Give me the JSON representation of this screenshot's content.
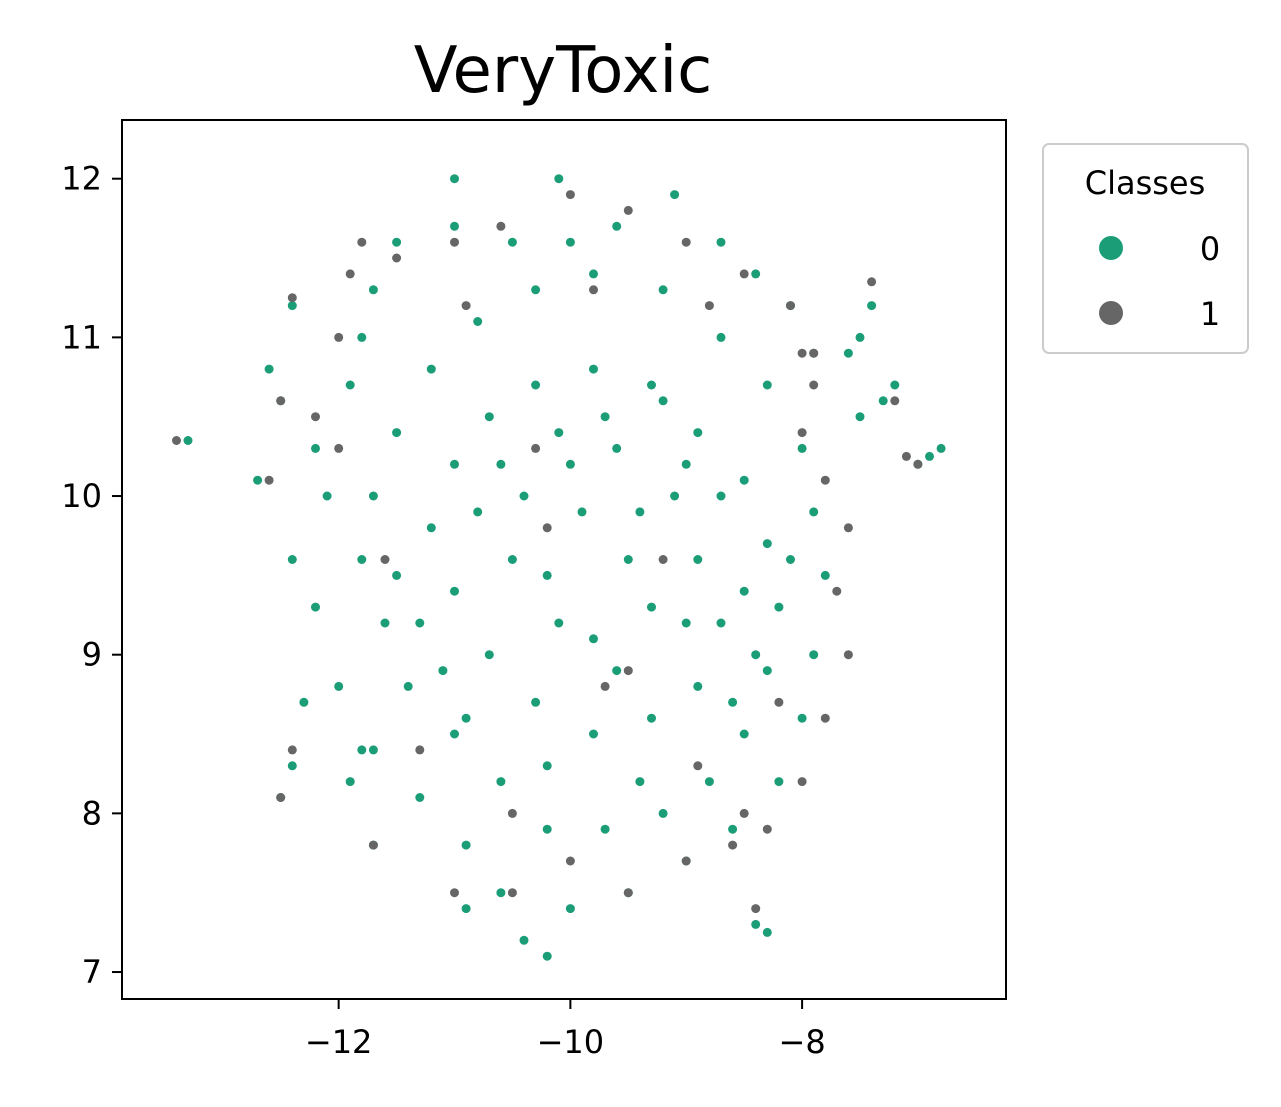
{
  "chart_data": {
    "type": "scatter",
    "title": "VeryToxic",
    "xlabel": "",
    "ylabel": "",
    "xlim": [
      -13.87,
      -6.24
    ],
    "ylim": [
      6.83,
      12.37
    ],
    "x_ticks": [
      -12,
      -10,
      -8
    ],
    "y_ticks": [
      7,
      8,
      9,
      10,
      11,
      12
    ],
    "x_tick_labels": [
      "−12",
      "−10",
      "−8"
    ],
    "y_tick_labels": [
      "7",
      "8",
      "9",
      "10",
      "11",
      "12"
    ],
    "grid": false,
    "legend": {
      "title": "Classes",
      "placement": "outside-upper-right"
    },
    "series": [
      {
        "name": "0",
        "color": "#1b9e77",
        "points": [
          [
            -9.9,
            9.9
          ],
          [
            -9.5,
            9.6
          ],
          [
            -9.3,
            9.3
          ],
          [
            -9.8,
            9.1
          ],
          [
            -10.2,
            9.5
          ],
          [
            -10.4,
            10.0
          ],
          [
            -10.0,
            10.2
          ],
          [
            -9.6,
            10.3
          ],
          [
            -9.1,
            10.0
          ],
          [
            -8.9,
            9.6
          ],
          [
            -8.7,
            9.2
          ],
          [
            -8.9,
            8.8
          ],
          [
            -9.3,
            8.6
          ],
          [
            -9.8,
            8.5
          ],
          [
            -10.3,
            8.7
          ],
          [
            -10.7,
            9.0
          ],
          [
            -11.0,
            9.4
          ],
          [
            -11.2,
            9.8
          ],
          [
            -11.0,
            10.2
          ],
          [
            -10.7,
            10.5
          ],
          [
            -10.3,
            10.7
          ],
          [
            -9.8,
            10.8
          ],
          [
            -9.3,
            10.7
          ],
          [
            -8.9,
            10.4
          ],
          [
            -8.5,
            10.1
          ],
          [
            -8.3,
            9.7
          ],
          [
            -8.2,
            9.3
          ],
          [
            -8.3,
            8.9
          ],
          [
            -8.5,
            8.5
          ],
          [
            -8.8,
            8.2
          ],
          [
            -9.2,
            8.0
          ],
          [
            -9.7,
            7.9
          ],
          [
            -10.2,
            7.9
          ],
          [
            -10.6,
            8.2
          ],
          [
            -11.0,
            8.5
          ],
          [
            -11.4,
            8.8
          ],
          [
            -11.6,
            9.2
          ],
          [
            -11.8,
            9.6
          ],
          [
            -11.7,
            10.0
          ],
          [
            -11.5,
            10.4
          ],
          [
            -11.2,
            10.8
          ],
          [
            -10.8,
            11.1
          ],
          [
            -10.3,
            11.3
          ],
          [
            -9.8,
            11.4
          ],
          [
            -9.2,
            11.3
          ],
          [
            -8.7,
            11.0
          ],
          [
            -8.3,
            10.7
          ],
          [
            -8.0,
            10.3
          ],
          [
            -7.9,
            9.9
          ],
          [
            -7.8,
            9.5
          ],
          [
            -7.9,
            9.0
          ],
          [
            -8.0,
            8.6
          ],
          [
            -8.2,
            8.2
          ],
          [
            -8.6,
            7.9
          ],
          [
            -9.0,
            7.7
          ],
          [
            -9.5,
            7.5
          ],
          [
            -10.0,
            7.4
          ],
          [
            -10.4,
            7.2
          ],
          [
            -10.2,
            7.1
          ],
          [
            -10.6,
            7.5
          ],
          [
            -10.9,
            7.8
          ],
          [
            -11.3,
            8.1
          ],
          [
            -11.7,
            8.4
          ],
          [
            -12.0,
            8.8
          ],
          [
            -12.2,
            9.3
          ],
          [
            -12.4,
            9.6
          ],
          [
            -12.1,
            10.0
          ],
          [
            -12.2,
            10.3
          ],
          [
            -11.9,
            10.7
          ],
          [
            -11.8,
            11.0
          ],
          [
            -11.7,
            11.3
          ],
          [
            -11.5,
            11.6
          ],
          [
            -11.0,
            11.7
          ],
          [
            -11.0,
            12.0
          ],
          [
            -10.5,
            11.6
          ],
          [
            -10.1,
            12.0
          ],
          [
            -10.0,
            11.6
          ],
          [
            -9.6,
            11.7
          ],
          [
            -9.1,
            11.9
          ],
          [
            -8.7,
            11.6
          ],
          [
            -8.4,
            11.4
          ],
          [
            -8.1,
            11.2
          ],
          [
            -12.5,
            10.6
          ],
          [
            -12.6,
            10.8
          ],
          [
            -12.4,
            11.2
          ],
          [
            -12.7,
            10.1
          ],
          [
            -13.3,
            10.35
          ],
          [
            -12.3,
            8.7
          ],
          [
            -12.4,
            8.3
          ],
          [
            -12.5,
            8.1
          ],
          [
            -11.8,
            8.4
          ],
          [
            -11.9,
            8.2
          ],
          [
            -11.7,
            7.8
          ],
          [
            -10.9,
            7.4
          ],
          [
            -8.4,
            7.3
          ],
          [
            -8.3,
            7.25
          ],
          [
            -7.4,
            11.2
          ],
          [
            -7.5,
            11.0
          ],
          [
            -7.6,
            10.9
          ],
          [
            -7.9,
            10.9
          ],
          [
            -7.2,
            10.7
          ],
          [
            -7.3,
            10.6
          ],
          [
            -7.5,
            10.5
          ],
          [
            -7.0,
            10.2
          ],
          [
            -6.8,
            10.3
          ],
          [
            -6.9,
            10.25
          ],
          [
            -9.4,
            9.9
          ],
          [
            -9.0,
            9.2
          ],
          [
            -9.6,
            8.9
          ],
          [
            -10.1,
            9.2
          ],
          [
            -10.5,
            9.6
          ],
          [
            -9.7,
            10.5
          ],
          [
            -9.2,
            10.6
          ],
          [
            -10.8,
            9.9
          ],
          [
            -11.3,
            9.2
          ],
          [
            -10.9,
            8.6
          ],
          [
            -10.2,
            8.3
          ],
          [
            -9.4,
            8.2
          ],
          [
            -8.6,
            8.7
          ],
          [
            -8.5,
            9.4
          ],
          [
            -8.7,
            10.0
          ],
          [
            -9.0,
            10.2
          ],
          [
            -10.1,
            10.4
          ],
          [
            -10.6,
            10.2
          ],
          [
            -11.5,
            9.5
          ],
          [
            -11.1,
            8.9
          ],
          [
            -8.1,
            9.6
          ],
          [
            -8.4,
            9.0
          ]
        ]
      },
      {
        "name": "1",
        "color": "#666666",
        "points": [
          [
            -12.6,
            10.1
          ],
          [
            -12.5,
            8.1
          ],
          [
            -12.4,
            8.4
          ],
          [
            -12.5,
            10.6
          ],
          [
            -12.4,
            11.25
          ],
          [
            -11.7,
            7.8
          ],
          [
            -11.0,
            7.5
          ],
          [
            -10.5,
            7.5
          ],
          [
            -10.5,
            8.0
          ],
          [
            -10.0,
            7.7
          ],
          [
            -9.5,
            7.5
          ],
          [
            -9.0,
            7.7
          ],
          [
            -8.6,
            7.8
          ],
          [
            -8.4,
            7.4
          ],
          [
            -8.3,
            7.9
          ],
          [
            -8.0,
            8.2
          ],
          [
            -7.8,
            8.6
          ],
          [
            -7.6,
            9.0
          ],
          [
            -7.7,
            9.4
          ],
          [
            -7.6,
            9.8
          ],
          [
            -7.8,
            10.1
          ],
          [
            -8.0,
            10.4
          ],
          [
            -8.0,
            10.9
          ],
          [
            -8.1,
            11.2
          ],
          [
            -8.5,
            11.4
          ],
          [
            -9.0,
            11.6
          ],
          [
            -9.5,
            11.8
          ],
          [
            -10.0,
            11.9
          ],
          [
            -10.6,
            11.7
          ],
          [
            -11.0,
            11.6
          ],
          [
            -11.5,
            11.5
          ],
          [
            -11.8,
            11.6
          ],
          [
            -12.0,
            11.0
          ],
          [
            -12.2,
            10.5
          ],
          [
            -10.2,
            9.8
          ],
          [
            -9.2,
            9.6
          ],
          [
            -9.7,
            8.8
          ],
          [
            -10.3,
            10.3
          ],
          [
            -8.9,
            8.3
          ],
          [
            -9.5,
            8.9
          ],
          [
            -7.0,
            10.2
          ],
          [
            -7.1,
            10.25
          ],
          [
            -7.2,
            10.6
          ],
          [
            -7.4,
            11.35
          ],
          [
            -7.9,
            10.9
          ],
          [
            -7.9,
            10.7
          ],
          [
            -13.4,
            10.35
          ],
          [
            -12.0,
            10.3
          ],
          [
            -11.6,
            9.6
          ],
          [
            -11.3,
            8.4
          ],
          [
            -8.5,
            8.0
          ],
          [
            -8.2,
            8.7
          ],
          [
            -11.9,
            11.4
          ],
          [
            -10.9,
            11.2
          ],
          [
            -9.8,
            11.3
          ],
          [
            -8.8,
            11.2
          ]
        ]
      }
    ]
  }
}
